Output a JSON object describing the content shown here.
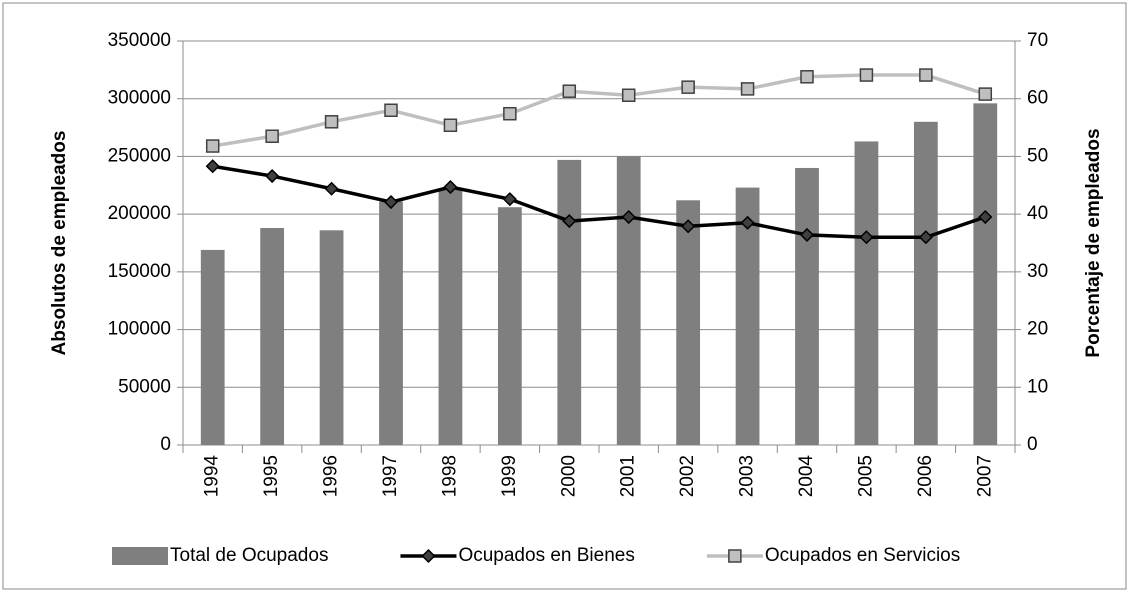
{
  "chart_data": {
    "type": "bar_line",
    "y_label": "Absolutos de empleados",
    "y2_label": "Porcentaje de empleados",
    "categories": [
      "1994",
      "1995",
      "1996",
      "1997",
      "1998",
      "1999",
      "2000",
      "2001",
      "2002",
      "2003",
      "2004",
      "2005",
      "2006",
      "2007"
    ],
    "series": [
      {
        "name": "Total de Ocupados",
        "type": "bar",
        "color": "#7f7f7f",
        "values": [
          169000,
          188000,
          186000,
          211000,
          221000,
          206000,
          247000,
          250000,
          212000,
          223000,
          240000,
          263000,
          280000,
          296000
        ]
      },
      {
        "name": "Ocupados en Bienes",
        "type": "line",
        "axis": "y2",
        "color": "#000000",
        "marker": "diamond",
        "values": [
          48.3,
          46.6,
          44.4,
          42.1,
          44.7,
          42.6,
          38.8,
          39.5,
          37.9,
          38.5,
          36.4,
          36.0,
          36.0,
          39.5
        ]
      },
      {
        "name": "Ocupados en Servicios",
        "type": "line",
        "axis": "y2",
        "color": "#bfbfbf",
        "marker": "square",
        "values": [
          51.8,
          53.5,
          56.0,
          58.0,
          55.4,
          57.4,
          61.3,
          60.6,
          62.0,
          61.7,
          63.8,
          64.1,
          64.1,
          60.8
        ]
      }
    ],
    "ylim": [
      0,
      350000
    ],
    "yticks": [
      0,
      50000,
      100000,
      150000,
      200000,
      250000,
      300000,
      350000
    ],
    "y2lim": [
      0,
      70
    ],
    "y2ticks": [
      0,
      10,
      20,
      30,
      40,
      50,
      60,
      70
    ],
    "grid": true,
    "legend": "bottom"
  }
}
